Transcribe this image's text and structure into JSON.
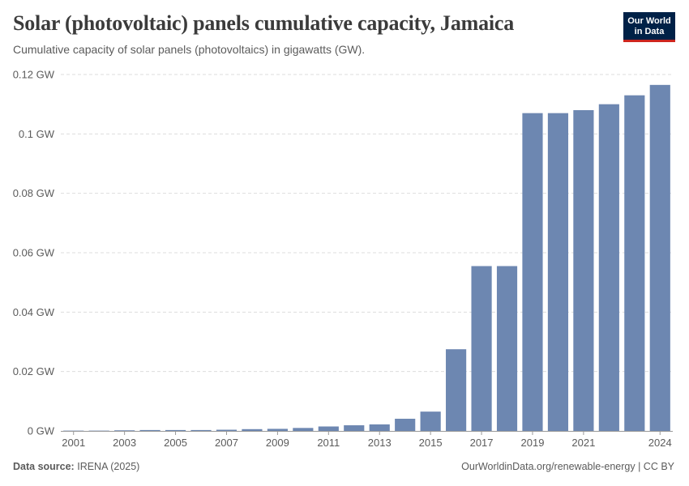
{
  "header": {
    "title": "Solar (photovoltaic) panels cumulative capacity, Jamaica",
    "subtitle": "Cumulative capacity of solar panels (photovoltaics) in gigawatts (GW).",
    "logo_line1": "Our World",
    "logo_line2": "in Data"
  },
  "footer": {
    "source_label": "Data source:",
    "source_value": "IRENA (2025)",
    "credit": "OurWorldinData.org/renewable-energy | CC BY"
  },
  "colors": {
    "bar": "#6d87b1",
    "grid": "#dddddd",
    "axis": "#999999"
  },
  "chart_data": {
    "type": "bar",
    "title": "Solar (photovoltaic) panels cumulative capacity, Jamaica",
    "xlabel": "",
    "ylabel": "",
    "unit": "GW",
    "ylim": [
      0,
      0.12
    ],
    "yticks": [
      0,
      0.02,
      0.04,
      0.06,
      0.08,
      0.1,
      0.12
    ],
    "ytick_labels": [
      "0 GW",
      "0.02 GW",
      "0.04 GW",
      "0.06 GW",
      "0.08 GW",
      "0.1 GW",
      "0.12 GW"
    ],
    "categories": [
      "2001",
      "2002",
      "2003",
      "2004",
      "2005",
      "2006",
      "2007",
      "2008",
      "2009",
      "2010",
      "2011",
      "2012",
      "2013",
      "2014",
      "2015",
      "2016",
      "2017",
      "2018",
      "2019",
      "2020",
      "2021",
      "2022",
      "2023",
      "2024"
    ],
    "xtick_labels": [
      "2001",
      "2003",
      "2005",
      "2007",
      "2009",
      "2011",
      "2013",
      "2015",
      "2017",
      "2019",
      "2021",
      "2024"
    ],
    "values": [
      0.0001,
      0.0001,
      0.0002,
      0.0003,
      0.0003,
      0.0003,
      0.0004,
      0.0006,
      0.0007,
      0.001,
      0.0015,
      0.0019,
      0.0022,
      0.0041,
      0.0065,
      0.0275,
      0.0555,
      0.0555,
      0.107,
      0.107,
      0.108,
      0.11,
      0.113,
      0.1165
    ]
  }
}
